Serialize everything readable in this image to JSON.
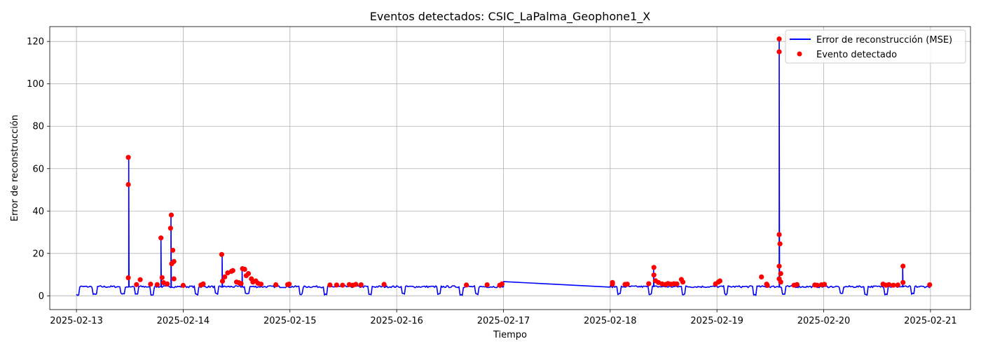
{
  "chart_data": {
    "type": "line",
    "title": "Eventos detectados: CSIC_LaPalma_Geophone1_X",
    "xlabel": "Tiempo",
    "ylabel": "Error de reconstrucción",
    "x_range": [
      "2025-02-12T18:00",
      "2025-02-21T09:00"
    ],
    "ylim": [
      -6.5,
      127
    ],
    "x_ticks": [
      "2025-02-13",
      "2025-02-14",
      "2025-02-15",
      "2025-02-16",
      "2025-02-17",
      "2025-02-18",
      "2025-02-19",
      "2025-02-20",
      "2025-02-21"
    ],
    "y_ticks": [
      0,
      20,
      40,
      60,
      80,
      100,
      120
    ],
    "grid": true,
    "legend_position": "top-right",
    "colors": {
      "line": "#0000ff",
      "events": "#ff0000"
    },
    "series": [
      {
        "name": "Error de reconstrucción (MSE)",
        "kind": "line",
        "baseline": 4.3,
        "dips": [
          [
            "2025-02-13T00:05",
            0
          ],
          [
            "2025-02-13T04:10",
            0.3
          ],
          [
            "2025-02-13T10:20",
            0.5
          ],
          [
            "2025-02-13T13:30",
            0.4
          ],
          [
            "2025-02-13T17:00",
            0.3
          ],
          [
            "2025-02-14T03:00",
            0.2
          ],
          [
            "2025-02-14T07:30",
            0.5
          ],
          [
            "2025-02-14T14:20",
            0.6
          ],
          [
            "2025-02-15T02:30",
            0.3
          ],
          [
            "2025-02-15T08:00",
            0.2
          ],
          [
            "2025-02-15T18:00",
            0.3
          ],
          [
            "2025-02-16T01:30",
            0.5
          ],
          [
            "2025-02-16T09:30",
            0.3
          ],
          [
            "2025-02-16T14:30",
            0.2
          ],
          [
            "2025-02-16T18:00",
            0.4
          ],
          [
            "2025-02-18T02:00",
            0.4
          ],
          [
            "2025-02-18T09:00",
            0.5
          ],
          [
            "2025-02-18T16:30",
            0.4
          ],
          [
            "2025-02-19T02:00",
            0.3
          ],
          [
            "2025-02-19T08:30",
            0.2
          ],
          [
            "2025-02-19T15:00",
            0.4
          ],
          [
            "2025-02-20T04:00",
            0.5
          ],
          [
            "2025-02-20T09:30",
            0.3
          ],
          [
            "2025-02-20T14:00",
            0.4
          ],
          [
            "2025-02-20T20:00",
            0.5
          ]
        ],
        "gap": [
          "2025-02-17T00:00",
          "2025-02-18T00:00"
        ],
        "gap_endpoints": [
          [
            "2025-02-17T00:00",
            6.7
          ],
          [
            "2025-02-18T00:00",
            4.1
          ]
        ]
      },
      {
        "name": "Evento detectado",
        "kind": "scatter",
        "points": [
          [
            "2025-02-13T11:40",
            65.3
          ],
          [
            "2025-02-13T11:40",
            52.5
          ],
          [
            "2025-02-13T11:40",
            8.5
          ],
          [
            "2025-02-13T13:30",
            5.3
          ],
          [
            "2025-02-13T14:20",
            7.6
          ],
          [
            "2025-02-13T16:40",
            5.5
          ],
          [
            "2025-02-13T18:10",
            5.3
          ],
          [
            "2025-02-13T19:00",
            27.3
          ],
          [
            "2025-02-13T19:15",
            8.6
          ],
          [
            "2025-02-13T19:35",
            6.2
          ],
          [
            "2025-02-13T20:25",
            5.6
          ],
          [
            "2025-02-13T21:20",
            38.1
          ],
          [
            "2025-02-13T21:10",
            31.9
          ],
          [
            "2025-02-13T21:25",
            15.1
          ],
          [
            "2025-02-13T21:40",
            21.5
          ],
          [
            "2025-02-13T21:55",
            16.2
          ],
          [
            "2025-02-13T21:55",
            8.0
          ],
          [
            "2025-02-14T00:00",
            4.9
          ],
          [
            "2025-02-14T04:00",
            5.1
          ],
          [
            "2025-02-14T04:30",
            5.6
          ],
          [
            "2025-02-14T08:40",
            19.5
          ],
          [
            "2025-02-14T08:50",
            6.9
          ],
          [
            "2025-02-14T09:20",
            8.9
          ],
          [
            "2025-02-14T10:00",
            10.8
          ],
          [
            "2025-02-14T10:50",
            11.5
          ],
          [
            "2025-02-14T11:10",
            11.9
          ],
          [
            "2025-02-14T12:00",
            6.5
          ],
          [
            "2025-02-14T12:30",
            6.2
          ],
          [
            "2025-02-14T13:00",
            5.8
          ],
          [
            "2025-02-14T13:20",
            12.8
          ],
          [
            "2025-02-14T13:50",
            12.5
          ],
          [
            "2025-02-14T14:10",
            9.5
          ],
          [
            "2025-02-14T14:40",
            10.5
          ],
          [
            "2025-02-14T15:20",
            8.0
          ],
          [
            "2025-02-14T15:40",
            6.5
          ],
          [
            "2025-02-14T16:20",
            7.0
          ],
          [
            "2025-02-14T16:50",
            5.9
          ],
          [
            "2025-02-14T17:30",
            5.5
          ],
          [
            "2025-02-14T20:50",
            5.2
          ],
          [
            "2025-02-14T23:30",
            5.3
          ],
          [
            "2025-02-14T23:50",
            5.5
          ],
          [
            "2025-02-15T09:00",
            5.1
          ],
          [
            "2025-02-15T10:30",
            5.1
          ],
          [
            "2025-02-15T11:50",
            5.0
          ],
          [
            "2025-02-15T13:20",
            5.3
          ],
          [
            "2025-02-15T14:10",
            5.0
          ],
          [
            "2025-02-15T14:50",
            5.4
          ],
          [
            "2025-02-15T16:00",
            5.2
          ],
          [
            "2025-02-15T21:10",
            5.4
          ],
          [
            "2025-02-16T15:40",
            5.1
          ],
          [
            "2025-02-16T20:20",
            5.2
          ],
          [
            "2025-02-16T23:10",
            5.0
          ],
          [
            "2025-02-16T23:40",
            5.6
          ],
          [
            "2025-02-18T00:30",
            6.3
          ],
          [
            "2025-02-18T00:30",
            5.5
          ],
          [
            "2025-02-18T03:20",
            5.4
          ],
          [
            "2025-02-18T03:50",
            5.5
          ],
          [
            "2025-02-18T08:40",
            5.7
          ],
          [
            "2025-02-18T09:50",
            13.4
          ],
          [
            "2025-02-18T09:50",
            9.8
          ],
          [
            "2025-02-18T10:10",
            7.1
          ],
          [
            "2025-02-18T10:50",
            6.3
          ],
          [
            "2025-02-18T11:40",
            5.6
          ],
          [
            "2025-02-18T12:30",
            5.4
          ],
          [
            "2025-02-18T13:00",
            5.8
          ],
          [
            "2025-02-18T13:40",
            5.5
          ],
          [
            "2025-02-18T14:20",
            5.7
          ],
          [
            "2025-02-18T15:00",
            5.6
          ],
          [
            "2025-02-18T16:00",
            7.7
          ],
          [
            "2025-02-18T16:20",
            6.5
          ],
          [
            "2025-02-18T23:40",
            5.6
          ],
          [
            "2025-02-19T00:20",
            6.5
          ],
          [
            "2025-02-19T00:40",
            7.0
          ],
          [
            "2025-02-19T10:00",
            8.9
          ],
          [
            "2025-02-19T11:10",
            5.5
          ],
          [
            "2025-02-19T11:20",
            4.9
          ],
          [
            "2025-02-19T14:00",
            121.2
          ],
          [
            "2025-02-19T14:00",
            115.1
          ],
          [
            "2025-02-19T14:00",
            28.9
          ],
          [
            "2025-02-19T14:10",
            24.5
          ],
          [
            "2025-02-19T14:00",
            14.0
          ],
          [
            "2025-02-19T14:20",
            10.5
          ],
          [
            "2025-02-19T14:00",
            8.0
          ],
          [
            "2025-02-19T14:20",
            6.5
          ],
          [
            "2025-02-19T17:20",
            5.0
          ],
          [
            "2025-02-19T18:00",
            5.3
          ],
          [
            "2025-02-19T22:00",
            5.1
          ],
          [
            "2025-02-19T22:30",
            5.0
          ],
          [
            "2025-02-19T23:30",
            5.2
          ],
          [
            "2025-02-20T00:10",
            5.4
          ],
          [
            "2025-02-20T13:20",
            5.5
          ],
          [
            "2025-02-20T14:00",
            5.0
          ],
          [
            "2025-02-20T14:40",
            5.3
          ],
          [
            "2025-02-20T15:40",
            5.0
          ],
          [
            "2025-02-20T16:40",
            5.1
          ],
          [
            "2025-02-20T17:50",
            14.0
          ],
          [
            "2025-02-20T17:50",
            6.3
          ],
          [
            "2025-02-20T23:50",
            5.2
          ]
        ]
      }
    ],
    "spikes": [
      [
        "2025-02-13T11:40",
        65.3
      ],
      [
        "2025-02-13T19:00",
        27.3
      ],
      [
        "2025-02-13T21:20",
        38.1
      ],
      [
        "2025-02-14T08:40",
        19.5
      ],
      [
        "2025-02-14T13:20",
        12.8
      ],
      [
        "2025-02-18T09:50",
        13.4
      ],
      [
        "2025-02-19T14:00",
        121.2
      ],
      [
        "2025-02-20T17:50",
        14.0
      ]
    ]
  }
}
